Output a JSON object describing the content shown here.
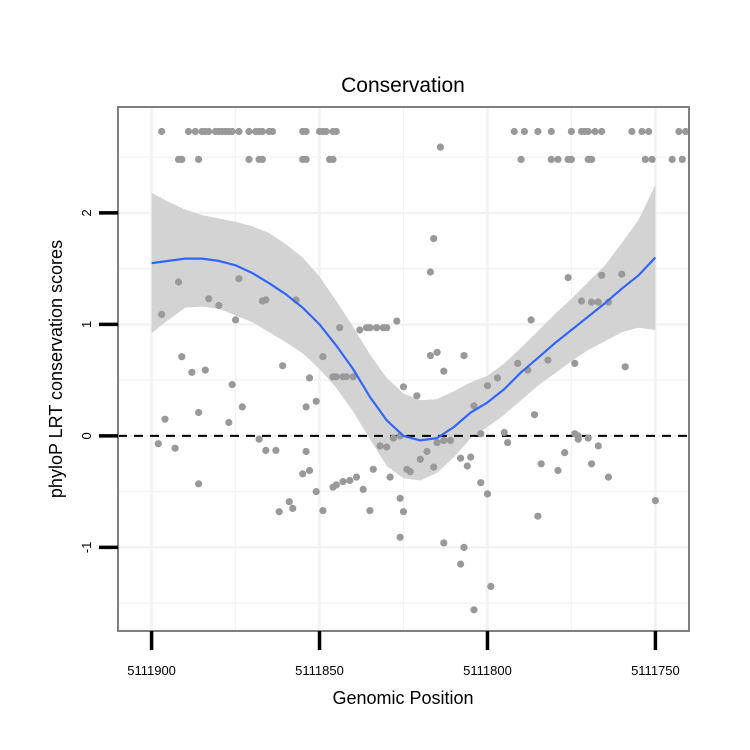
{
  "chart_data": {
    "type": "scatter",
    "title": "Conservation",
    "xlabel": "Genomic Position",
    "ylabel": "phyloP LRT conservation scores",
    "x_reversed": true,
    "xlim": [
      5111910,
      5111740
    ],
    "ylim": [
      -1.75,
      2.95
    ],
    "x_ticks": [
      5111900,
      5111850,
      5111800,
      5111750
    ],
    "x_tick_labels": [
      "5111900",
      "5111850",
      "5111800",
      "5111750"
    ],
    "y_ticks": [
      -1,
      0,
      1,
      2
    ],
    "y_tick_labels": [
      "-1",
      "0",
      "1",
      "2"
    ],
    "reference_line": {
      "y": 0,
      "style": "dashed",
      "color": "#000000"
    },
    "colors": {
      "points": "#999999",
      "smooth": "#3366ff",
      "ribbon": "#d3d3d3",
      "gridline": "#f2f2f2",
      "border": "#7f7f7f"
    },
    "points": [
      [
        5111897,
        2.73
      ],
      [
        5111889,
        2.73
      ],
      [
        5111887,
        2.73
      ],
      [
        5111885,
        2.73
      ],
      [
        5111884,
        2.73
      ],
      [
        5111883,
        2.73
      ],
      [
        5111881,
        2.73
      ],
      [
        5111880,
        2.73
      ],
      [
        5111879,
        2.73
      ],
      [
        5111878,
        2.73
      ],
      [
        5111877,
        2.73
      ],
      [
        5111876,
        2.73
      ],
      [
        5111874,
        2.73
      ],
      [
        5111871,
        2.73
      ],
      [
        5111869,
        2.73
      ],
      [
        5111868,
        2.73
      ],
      [
        5111867,
        2.73
      ],
      [
        5111865,
        2.73
      ],
      [
        5111864,
        2.73
      ],
      [
        5111855,
        2.73
      ],
      [
        5111854,
        2.73
      ],
      [
        5111850,
        2.73
      ],
      [
        5111849,
        2.73
      ],
      [
        5111848,
        2.73
      ],
      [
        5111846,
        2.73
      ],
      [
        5111845,
        2.73
      ],
      [
        5111792,
        2.73
      ],
      [
        5111789,
        2.73
      ],
      [
        5111785,
        2.73
      ],
      [
        5111781,
        2.73
      ],
      [
        5111775,
        2.73
      ],
      [
        5111772,
        2.73
      ],
      [
        5111771,
        2.73
      ],
      [
        5111770,
        2.73
      ],
      [
        5111768,
        2.73
      ],
      [
        5111766,
        2.73
      ],
      [
        5111757,
        2.73
      ],
      [
        5111754,
        2.73
      ],
      [
        5111752,
        2.73
      ],
      [
        5111743,
        2.73
      ],
      [
        5111741,
        2.73
      ],
      [
        5111892,
        2.48
      ],
      [
        5111891,
        2.48
      ],
      [
        5111886,
        2.48
      ],
      [
        5111871,
        2.48
      ],
      [
        5111868,
        2.48
      ],
      [
        5111867,
        2.48
      ],
      [
        5111855,
        2.48
      ],
      [
        5111854,
        2.48
      ],
      [
        5111847,
        2.48
      ],
      [
        5111846,
        2.48
      ],
      [
        5111790,
        2.48
      ],
      [
        5111781,
        2.48
      ],
      [
        5111779,
        2.48
      ],
      [
        5111776,
        2.48
      ],
      [
        5111775,
        2.48
      ],
      [
        5111770,
        2.48
      ],
      [
        5111769,
        2.48
      ],
      [
        5111753,
        2.48
      ],
      [
        5111751,
        2.48
      ],
      [
        5111745,
        2.48
      ],
      [
        5111742,
        2.48
      ],
      [
        5111814,
        2.59
      ],
      [
        5111816,
        1.77
      ],
      [
        5111817,
        1.47
      ],
      [
        5111897,
        1.09
      ],
      [
        5111892,
        1.38
      ],
      [
        5111891,
        0.71
      ],
      [
        5111888,
        0.57
      ],
      [
        5111886,
        0.21
      ],
      [
        5111884,
        0.59
      ],
      [
        5111883,
        1.23
      ],
      [
        5111880,
        1.17
      ],
      [
        5111877,
        0.12
      ],
      [
        5111876,
        0.46
      ],
      [
        5111875,
        1.04
      ],
      [
        5111874,
        1.41
      ],
      [
        5111873,
        0.26
      ],
      [
        5111867,
        1.21
      ],
      [
        5111866,
        1.22
      ],
      [
        5111863,
        -0.13
      ],
      [
        5111861,
        0.63
      ],
      [
        5111857,
        1.22
      ],
      [
        5111854,
        0.26
      ],
      [
        5111853,
        0.52
      ],
      [
        5111851,
        0.31
      ],
      [
        5111849,
        0.71
      ],
      [
        5111846,
        0.53
      ],
      [
        5111845,
        0.53
      ],
      [
        5111844,
        0.97
      ],
      [
        5111843,
        0.53
      ],
      [
        5111842,
        0.53
      ],
      [
        5111840,
        0.53
      ],
      [
        5111838,
        0.95
      ],
      [
        5111836,
        0.97
      ],
      [
        5111835,
        0.97
      ],
      [
        5111833,
        0.97
      ],
      [
        5111831,
        0.97
      ],
      [
        5111830,
        0.97
      ],
      [
        5111827,
        1.03
      ],
      [
        5111826,
        0.0
      ],
      [
        5111825,
        0.44
      ],
      [
        5111821,
        0.36
      ],
      [
        5111817,
        0.72
      ],
      [
        5111815,
        0.75
      ],
      [
        5111813,
        0.58
      ],
      [
        5111807,
        0.72
      ],
      [
        5111804,
        0.27
      ],
      [
        5111802,
        0.02
      ],
      [
        5111797,
        0.52
      ],
      [
        5111795,
        0.03
      ],
      [
        5111794,
        -0.06
      ],
      [
        5111791,
        0.65
      ],
      [
        5111788,
        0.59
      ],
      [
        5111787,
        1.04
      ],
      [
        5111786,
        0.19
      ],
      [
        5111782,
        0.68
      ],
      [
        5111776,
        1.42
      ],
      [
        5111774,
        0.65
      ],
      [
        5111772,
        1.21
      ],
      [
        5111769,
        1.2
      ],
      [
        5111767,
        1.2
      ],
      [
        5111766,
        1.44
      ],
      [
        5111764,
        1.2
      ],
      [
        5111760,
        1.45
      ],
      [
        5111759,
        0.62
      ],
      [
        5111898,
        -0.07
      ],
      [
        5111896,
        0.15
      ],
      [
        5111893,
        -0.11
      ],
      [
        5111886,
        -0.43
      ],
      [
        5111868,
        -0.03
      ],
      [
        5111866,
        -0.13
      ],
      [
        5111862,
        -0.68
      ],
      [
        5111859,
        -0.59
      ],
      [
        5111858,
        -0.65
      ],
      [
        5111855,
        -0.34
      ],
      [
        5111854,
        -0.14
      ],
      [
        5111853,
        -0.31
      ],
      [
        5111851,
        -0.5
      ],
      [
        5111849,
        -0.67
      ],
      [
        5111846,
        -0.46
      ],
      [
        5111845,
        -0.44
      ],
      [
        5111843,
        -0.41
      ],
      [
        5111841,
        -0.4
      ],
      [
        5111839,
        -0.37
      ],
      [
        5111837,
        -0.48
      ],
      [
        5111835,
        -0.67
      ],
      [
        5111834,
        -0.3
      ],
      [
        5111832,
        -0.09
      ],
      [
        5111830,
        -0.1
      ],
      [
        5111829,
        -0.37
      ],
      [
        5111828,
        -0.02
      ],
      [
        5111826,
        -0.56
      ],
      [
        5111825,
        -0.68
      ],
      [
        5111824,
        -0.3
      ],
      [
        5111823,
        -0.32
      ],
      [
        5111820,
        -0.21
      ],
      [
        5111818,
        -0.14
      ],
      [
        5111816,
        -0.28
      ],
      [
        5111815,
        -0.06
      ],
      [
        5111813,
        -0.04
      ],
      [
        5111811,
        -0.04
      ],
      [
        5111808,
        -0.2
      ],
      [
        5111806,
        -0.27
      ],
      [
        5111805,
        -0.19
      ],
      [
        5111800,
        -0.52
      ],
      [
        5111800,
        0.45
      ],
      [
        5111779,
        -0.31
      ],
      [
        5111777,
        -0.15
      ],
      [
        5111774,
        0.02
      ],
      [
        5111773,
        -0.03
      ],
      [
        5111770,
        -0.02
      ],
      [
        5111767,
        -0.09
      ],
      [
        5111764,
        -0.37
      ],
      [
        5111750,
        -0.58
      ],
      [
        5111802,
        -0.42
      ],
      [
        5111826,
        -0.91
      ],
      [
        5111813,
        -0.96
      ],
      [
        5111808,
        -1.15
      ],
      [
        5111807,
        -1.0
      ],
      [
        5111804,
        -1.56
      ],
      [
        5111799,
        -1.35
      ],
      [
        5111785,
        -0.72
      ],
      [
        5111784,
        -0.25
      ],
      [
        5111773,
        0.0
      ],
      [
        5111769,
        -0.25
      ]
    ],
    "smooth": {
      "x": [
        5111900,
        5111895,
        5111890,
        5111885,
        5111880,
        5111875,
        5111870,
        5111865,
        5111860,
        5111855,
        5111850,
        5111845,
        5111840,
        5111835,
        5111830,
        5111825,
        5111820,
        5111815,
        5111810,
        5111805,
        5111800,
        5111795,
        5111790,
        5111785,
        5111780,
        5111775,
        5111770,
        5111765,
        5111760,
        5111755,
        5111750
      ],
      "y": [
        1.55,
        1.57,
        1.59,
        1.59,
        1.57,
        1.53,
        1.46,
        1.37,
        1.27,
        1.15,
        1.0,
        0.81,
        0.6,
        0.35,
        0.14,
        0.0,
        -0.04,
        -0.02,
        0.08,
        0.21,
        0.3,
        0.42,
        0.57,
        0.7,
        0.83,
        0.95,
        1.07,
        1.19,
        1.32,
        1.44,
        1.6
      ],
      "lower": [
        0.92,
        1.04,
        1.15,
        1.16,
        1.14,
        1.08,
        1.02,
        0.93,
        0.84,
        0.74,
        0.6,
        0.43,
        0.22,
        -0.03,
        -0.27,
        -0.38,
        -0.4,
        -0.33,
        -0.19,
        -0.02,
        0.08,
        0.19,
        0.32,
        0.45,
        0.56,
        0.67,
        0.77,
        0.85,
        0.93,
        0.97,
        0.95
      ],
      "upper": [
        2.18,
        2.1,
        2.03,
        1.98,
        1.95,
        1.92,
        1.88,
        1.82,
        1.72,
        1.6,
        1.43,
        1.21,
        0.98,
        0.73,
        0.52,
        0.38,
        0.32,
        0.33,
        0.4,
        0.48,
        0.54,
        0.65,
        0.79,
        0.94,
        1.09,
        1.23,
        1.38,
        1.53,
        1.73,
        1.94,
        2.25
      ]
    }
  }
}
